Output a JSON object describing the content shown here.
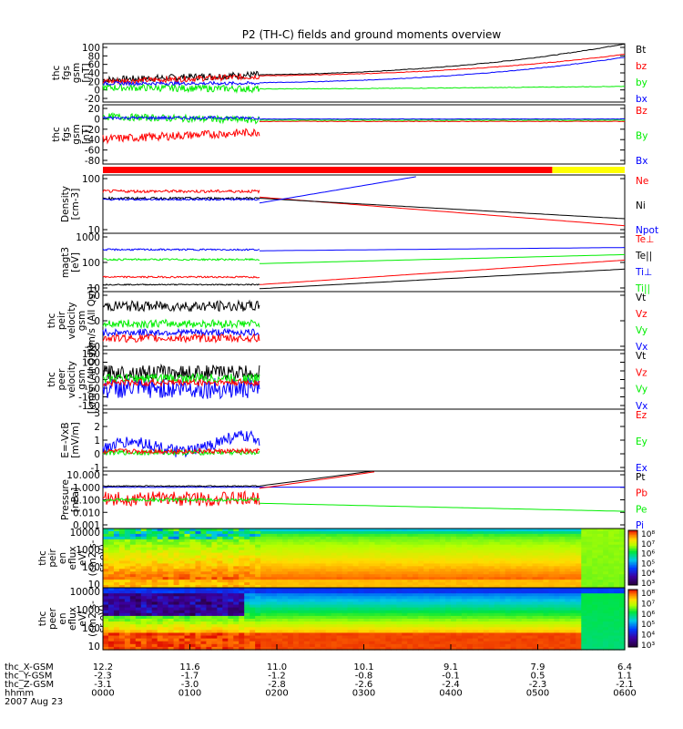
{
  "title": "P2 (TH-C) fields and ground moments overview",
  "colors": {
    "black": "#000000",
    "red": "#ff0000",
    "green": "#00ee00",
    "blue": "#0000ff",
    "yellow": "#ffff00"
  },
  "chart_data": [
    {
      "type": "line",
      "id": "fgs-gsm",
      "ylabel": [
        "thc",
        "fgs",
        "gsm",
        "[nT]"
      ],
      "yticks": [
        "100",
        "80",
        "60",
        "40",
        "20",
        "0",
        "-20"
      ],
      "legend": [
        {
          "name": "Bt",
          "color": "black"
        },
        {
          "name": "bz",
          "color": "red"
        },
        {
          "name": "by",
          "color": "green"
        },
        {
          "name": "bx",
          "color": "blue"
        }
      ]
    },
    {
      "type": "line",
      "id": "fgs-gsm-delta",
      "ylabel": [
        "thc",
        "fgs",
        "gsm",
        "[nT]"
      ],
      "yticks": [
        "20",
        "0",
        "-20",
        "-40",
        "-60",
        "-80"
      ],
      "legend": [
        {
          "name": "Bz",
          "color": "red"
        },
        {
          "name": "By",
          "color": "green"
        },
        {
          "name": "Bx",
          "color": "blue"
        }
      ]
    },
    {
      "type": "bar",
      "id": "mode-bar",
      "segments": [
        {
          "from": "0000",
          "to": "0510",
          "color": "red"
        },
        {
          "from": "0510",
          "to": "0600",
          "color": "yellow"
        }
      ]
    },
    {
      "type": "line",
      "id": "density",
      "ylabel": [
        "Density",
        "[cm-3]"
      ],
      "yscale": "log",
      "yticks": [
        "100",
        "10"
      ],
      "legend": [
        {
          "name": "Ne",
          "color": "red"
        },
        {
          "name": "Ni",
          "color": "black"
        },
        {
          "name": "Npot",
          "color": "blue"
        }
      ]
    },
    {
      "type": "line",
      "id": "temperature",
      "ylabel": [
        "magt3",
        "[eV]"
      ],
      "yscale": "log",
      "yticks": [
        "1000",
        "100",
        "10"
      ],
      "legend": [
        {
          "name": "Te⊥",
          "color": "red"
        },
        {
          "name": "Te||",
          "color": "black"
        },
        {
          "name": "Ti⊥",
          "color": "blue"
        },
        {
          "name": "Ti||",
          "color": "green"
        }
      ]
    },
    {
      "type": "line",
      "id": "peir-velocity",
      "ylabel": [
        "thc",
        "peir",
        "velocity",
        "gsm",
        "[km/s (All Qs)]"
      ],
      "yticks": [
        "50",
        "0",
        "-50"
      ],
      "legend": [
        {
          "name": "Vt",
          "color": "black"
        },
        {
          "name": "Vz",
          "color": "red"
        },
        {
          "name": "Vy",
          "color": "green"
        },
        {
          "name": "Vx",
          "color": "blue"
        }
      ]
    },
    {
      "type": "line",
      "id": "peer-velocity",
      "ylabel": [
        "thc",
        "peer",
        "velocity",
        "gsm",
        "[km/s (All Qs)]"
      ],
      "yticks": [
        "150",
        "100",
        "50",
        "0",
        "-50",
        "-100",
        "-150"
      ],
      "legend": [
        {
          "name": "Vt",
          "color": "black"
        },
        {
          "name": "Vz",
          "color": "red"
        },
        {
          "name": "Vy",
          "color": "green"
        },
        {
          "name": "Vx",
          "color": "blue"
        }
      ]
    },
    {
      "type": "line",
      "id": "efield",
      "ylabel": [
        "E=-VxB",
        "[mV/m]"
      ],
      "yticks": [
        "3",
        "2",
        "1",
        "0",
        "-1"
      ],
      "legend": [
        {
          "name": "Ez",
          "color": "red"
        },
        {
          "name": "Ey",
          "color": "green"
        },
        {
          "name": "Ex",
          "color": "blue"
        }
      ]
    },
    {
      "type": "line",
      "id": "pressure",
      "ylabel": [
        "Pressure",
        "[nPa]"
      ],
      "yscale": "log",
      "yticks": [
        "10.000",
        "1.000",
        "0.100",
        "0.010",
        "0.001"
      ],
      "legend": [
        {
          "name": "Pt",
          "color": "black"
        },
        {
          "name": "Pb",
          "color": "red"
        },
        {
          "name": "Pe",
          "color": "green"
        },
        {
          "name": "Pi",
          "color": "blue"
        }
      ]
    },
    {
      "type": "heatmap",
      "id": "peir-spec",
      "ylabel": [
        "thc",
        "peir",
        "en",
        "eflux",
        "eV/",
        "(cm2-s-",
        "sr-eV)"
      ],
      "yscale": "log",
      "yticks": [
        "10000",
        "1000",
        "100",
        "10"
      ],
      "colorbar": [
        "10⁸",
        "10⁷",
        "10⁶",
        "10⁵",
        "10⁴",
        "10³"
      ]
    },
    {
      "type": "heatmap",
      "id": "peer-spec",
      "ylabel": [
        "thc",
        "peer",
        "en",
        "eflux",
        "eV/",
        "(cm2-s-",
        "sr-eV)"
      ],
      "yscale": "log",
      "yticks": [
        "10000",
        "1000",
        "100",
        "10"
      ],
      "colorbar": [
        "10⁸",
        "10⁷",
        "10⁶",
        "10⁵",
        "10⁴",
        "10³"
      ]
    }
  ],
  "xaxis": {
    "rows": [
      {
        "label": "thc_X-GSM",
        "values": [
          "12.2",
          "11.6",
          "11.0",
          "10.1",
          "9.1",
          "7.9",
          "6.4"
        ]
      },
      {
        "label": "thc_Y-GSM",
        "values": [
          "-2.3",
          "-1.7",
          "-1.2",
          "-0.8",
          "-0.1",
          "0.5",
          "1.1"
        ]
      },
      {
        "label": "thc_Z-GSM",
        "values": [
          "-3.1",
          "-3.0",
          "-2.8",
          "-2.6",
          "-2.4",
          "-2.3",
          "-2.1"
        ]
      },
      {
        "label": "hhmm",
        "values": [
          "0000",
          "0100",
          "0200",
          "0300",
          "0400",
          "0500",
          "0600"
        ]
      }
    ],
    "date": "2007 Aug 23"
  }
}
